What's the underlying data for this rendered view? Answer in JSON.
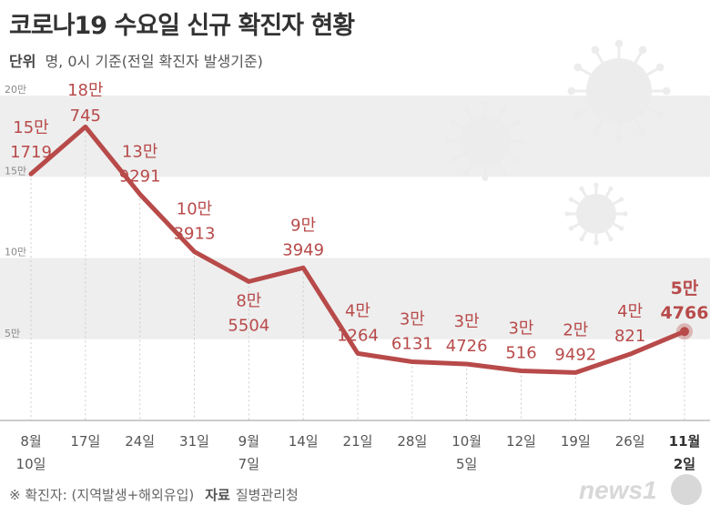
{
  "header": {
    "title": "코로나19 수요일 신규 확진자 현황",
    "unit_label": "단위",
    "unit_text": "명, 0시 기준(전일 확진자 발생기준)"
  },
  "footer": {
    "note": "※ 확진자: (지역발생+해외유입)",
    "source_label": "자료",
    "source": "질병관리청",
    "logo_text": "news1"
  },
  "colors": {
    "line": "#b84a4a",
    "label": "#b84a4a",
    "band": "#eeeeee",
    "axis": "#999999"
  },
  "chart_data": {
    "type": "line",
    "title": "코로나19 수요일 신규 확진자 현황",
    "ylabel": "명",
    "ylim": [
      0,
      200000
    ],
    "y_ticks": [
      {
        "value": 200000,
        "label": "20만"
      },
      {
        "value": 150000,
        "label": "15만"
      },
      {
        "value": 100000,
        "label": "10만"
      },
      {
        "value": 50000,
        "label": "5만"
      }
    ],
    "x_labels": [
      [
        "8월",
        "10일"
      ],
      [
        "17일"
      ],
      [
        "24일"
      ],
      [
        "31일"
      ],
      [
        "9월",
        "7일"
      ],
      [
        "14일"
      ],
      [
        "21일"
      ],
      [
        "28일"
      ],
      [
        "10월",
        "5일"
      ],
      [
        "12일"
      ],
      [
        "19일"
      ],
      [
        "26일"
      ],
      [
        "11월",
        "2일"
      ]
    ],
    "values": [
      151719,
      180745,
      139291,
      103913,
      85504,
      93949,
      41264,
      36131,
      34726,
      30516,
      29492,
      40821,
      54766
    ],
    "labels": [
      [
        "15만",
        "1719"
      ],
      [
        "18만",
        "745"
      ],
      [
        "13만",
        "9291"
      ],
      [
        "10만",
        "3913"
      ],
      [
        "8만",
        "5504"
      ],
      [
        "9만",
        "3949"
      ],
      [
        "4만",
        "1264"
      ],
      [
        "3만",
        "6131"
      ],
      [
        "3만",
        "4726"
      ],
      [
        "3만",
        "516"
      ],
      [
        "2만",
        "9492"
      ],
      [
        "4만",
        "821"
      ],
      [
        "5만",
        "4766"
      ]
    ],
    "highlight_index": 12
  }
}
